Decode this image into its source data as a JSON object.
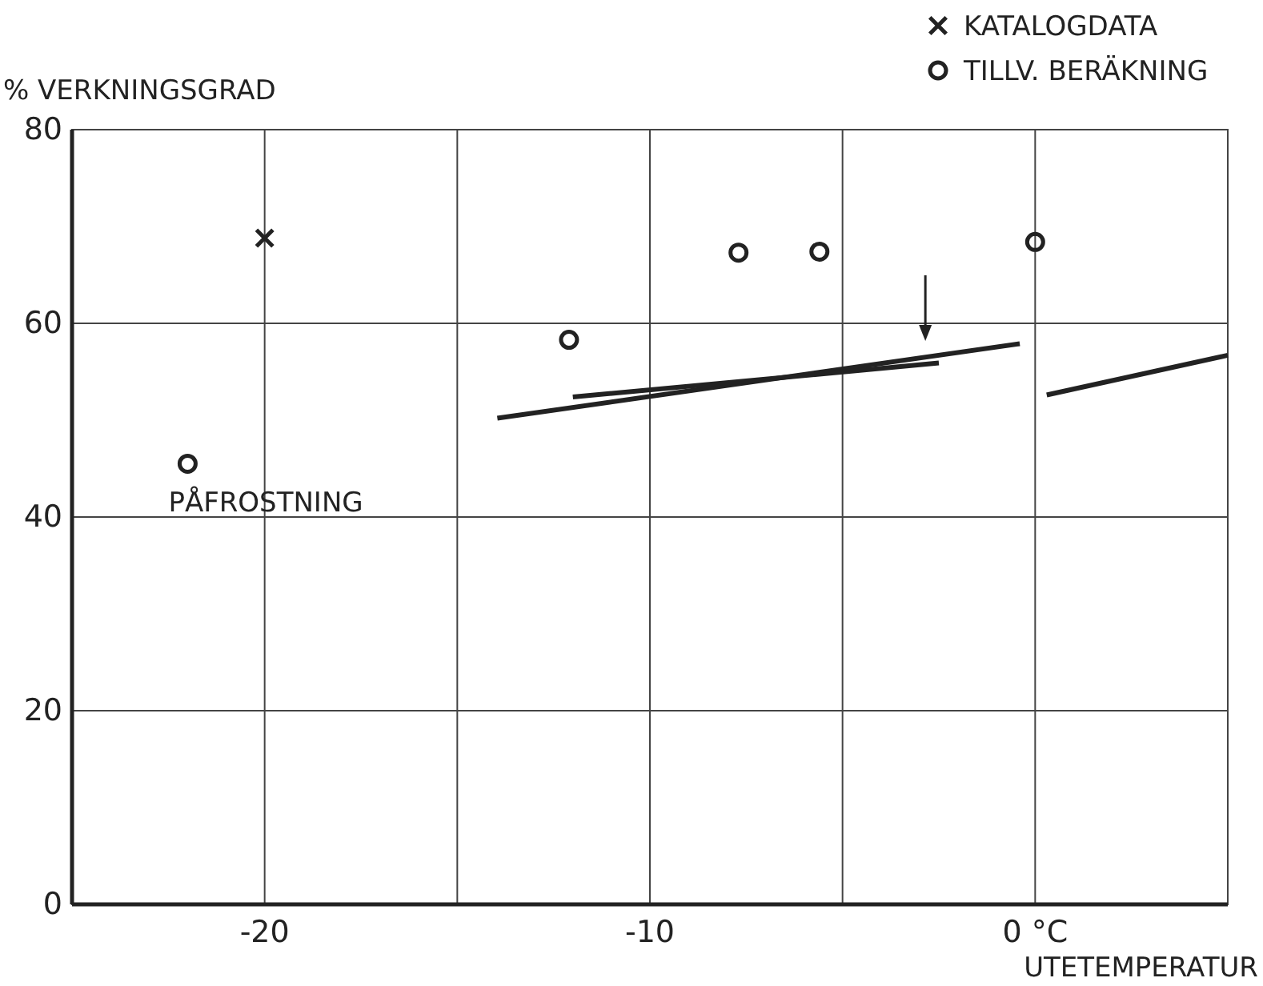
{
  "chart_data": {
    "type": "scatter",
    "ylabel": "% VERKNINGSGRAD",
    "xlabel": "UTETEMPERATUR",
    "xlim": [
      -25,
      5
    ],
    "xticks": [
      -20,
      -10,
      {
        "value": 0,
        "label": "0  °C"
      }
    ],
    "ylim": [
      0,
      80
    ],
    "yticks": [
      0,
      20,
      40,
      60,
      80
    ],
    "grid": true,
    "legend": "top right",
    "series": [
      {
        "name": "KATALOGDATA",
        "color": "#222222",
        "marker": "cross",
        "x": [
          -20
        ],
        "values": [
          68.8
        ]
      },
      {
        "name": "TILLV. BERÄKNING",
        "color": "#222222",
        "marker": "circle",
        "x": [
          -22,
          -12.1,
          -7.7,
          -5.6,
          0
        ],
        "values": [
          45.5,
          58.3,
          67.3,
          67.4,
          68.4
        ]
      },
      {
        "type": "line",
        "color": "#222222",
        "x": [
          -13.96,
          -0.4
        ],
        "values": [
          50.2,
          57.9
        ]
      },
      {
        "type": "line",
        "color": "#222222",
        "x": [
          -12,
          -2.5
        ],
        "values": [
          52.4,
          55.9
        ]
      },
      {
        "type": "line",
        "color": "#222222",
        "x": [
          0.3,
          5
        ],
        "values": [
          52.6,
          56.7
        ]
      }
    ],
    "annotations": [
      {
        "text": "PÅFROSTNING",
        "x": -22,
        "y": 45.5
      }
    ]
  }
}
